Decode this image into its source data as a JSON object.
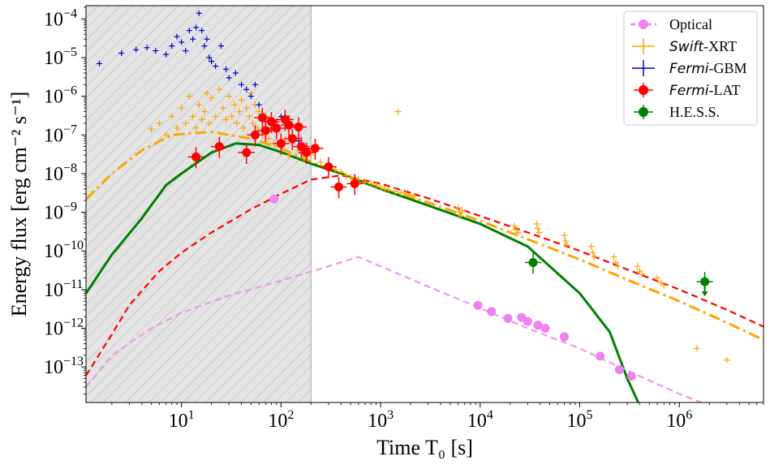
{
  "chart_data": {
    "type": "scatter",
    "xlabel": "Time T₀ [s]",
    "ylabel": "Energy flux [erg cm⁻² s⁻¹]",
    "xscale": "log",
    "yscale": "log",
    "xlim": [
      1.1,
      7000000
    ],
    "ylim": [
      1.2e-14,
      0.00022
    ],
    "x_ticks": [
      {
        "value": 10,
        "base": "10",
        "exp": "1"
      },
      {
        "value": 100,
        "base": "10",
        "exp": "2"
      },
      {
        "value": 1000,
        "base": "10",
        "exp": "3"
      },
      {
        "value": 10000,
        "base": "10",
        "exp": "4"
      },
      {
        "value": 100000,
        "base": "10",
        "exp": "5"
      },
      {
        "value": 1000000,
        "base": "10",
        "exp": "6"
      }
    ],
    "y_ticks": [
      {
        "value": 1e-13,
        "base": "10",
        "exp": "−13"
      },
      {
        "value": 1e-12,
        "base": "10",
        "exp": "−12"
      },
      {
        "value": 1e-11,
        "base": "10",
        "exp": "−11"
      },
      {
        "value": 1e-10,
        "base": "10",
        "exp": "−10"
      },
      {
        "value": 1e-09,
        "base": "10",
        "exp": "−9"
      },
      {
        "value": 1e-08,
        "base": "10",
        "exp": "−8"
      },
      {
        "value": 1e-07,
        "base": "10",
        "exp": "−7"
      },
      {
        "value": 1e-06,
        "base": "10",
        "exp": "−6"
      },
      {
        "value": 1e-05,
        "base": "10",
        "exp": "−5"
      },
      {
        "value": 0.0001,
        "base": "10",
        "exp": "−4"
      }
    ],
    "shaded_region": {
      "x": [
        1.1,
        200
      ],
      "style": "hatched-gray"
    },
    "legend": {
      "position": "top-right",
      "entries": [
        {
          "label": "Optical",
          "italic_prefix": "",
          "color": "#ee82ee",
          "marker": "circle"
        },
        {
          "label": "-XRT",
          "italic_prefix": "Swift",
          "color": "#ffa500",
          "marker": "plus"
        },
        {
          "label": "-GBM",
          "italic_prefix": "Fermi",
          "color": "#0000cd",
          "marker": "plus"
        },
        {
          "label": "-LAT",
          "italic_prefix": "Fermi",
          "color": "#ff0000",
          "marker": "circle-errorbar"
        },
        {
          "label": "H.E.S.S.",
          "italic_prefix": "",
          "color": "#008000",
          "marker": "circle-errorbar"
        }
      ]
    },
    "model_curves": [
      {
        "style": "dash-dot",
        "color": "#ffa500",
        "points": [
          [
            1.1,
            2.2e-09
          ],
          [
            2,
            1e-08
          ],
          [
            4,
            4e-08
          ],
          [
            8,
            1e-07
          ],
          [
            20,
            1.2e-07
          ],
          [
            50,
            8e-08
          ],
          [
            100,
            4.5e-08
          ],
          [
            200,
            2e-08
          ],
          [
            500,
            8e-09
          ],
          [
            1000,
            4e-09
          ],
          [
            3000,
            1.8e-09
          ],
          [
            10000,
            6e-10
          ],
          [
            30000,
            2e-10
          ],
          [
            100000,
            6e-11
          ],
          [
            300000,
            1.8e-11
          ],
          [
            1000000,
            5e-12
          ],
          [
            3000000,
            1.4e-12
          ],
          [
            7000000,
            5e-13
          ]
        ]
      },
      {
        "style": "solid",
        "color": "#008000",
        "points": [
          [
            1.1,
            8e-12
          ],
          [
            2,
            8e-11
          ],
          [
            4,
            7e-10
          ],
          [
            7,
            5e-09
          ],
          [
            10,
            1e-08
          ],
          [
            20,
            3.5e-08
          ],
          [
            35,
            6e-08
          ],
          [
            60,
            5.5e-08
          ],
          [
            100,
            3.6e-08
          ],
          [
            200,
            1.8e-08
          ],
          [
            400,
            1e-08
          ],
          [
            1000,
            4e-09
          ],
          [
            3000,
            1.5e-09
          ],
          [
            10000,
            5e-10
          ],
          [
            30000,
            1.3e-10
          ],
          [
            100000,
            8e-12
          ],
          [
            200000,
            8e-13
          ],
          [
            300000,
            5e-14
          ],
          [
            400000,
            1e-14
          ]
        ]
      },
      {
        "style": "dashed",
        "color": "#ff0000",
        "points": [
          [
            1.1,
            6e-14
          ],
          [
            2,
            7e-13
          ],
          [
            3,
            4e-12
          ],
          [
            6,
            3e-11
          ],
          [
            10,
            9e-11
          ],
          [
            20,
            3e-10
          ],
          [
            50,
            1.2e-09
          ],
          [
            100,
            3e-09
          ],
          [
            200,
            7e-09
          ],
          [
            400,
            9e-09
          ],
          [
            1000,
            5.5e-09
          ],
          [
            3000,
            2.3e-09
          ],
          [
            10000,
            8e-10
          ],
          [
            30000,
            3e-10
          ],
          [
            100000,
            1e-10
          ],
          [
            300000,
            3.3e-11
          ],
          [
            1000000,
            1e-11
          ],
          [
            3000000,
            3e-12
          ],
          [
            7000000,
            1.1e-12
          ]
        ]
      },
      {
        "style": "dashed",
        "color": "#ee99ee",
        "points": [
          [
            1.1,
            3e-14
          ],
          [
            2,
            2e-13
          ],
          [
            5,
            1e-12
          ],
          [
            10,
            2.5e-12
          ],
          [
            30,
            7e-12
          ],
          [
            100,
            1.7e-11
          ],
          [
            300,
            4e-11
          ],
          [
            600,
            7e-11
          ],
          [
            1000,
            4e-11
          ],
          [
            3000,
            1.2e-11
          ],
          [
            10000,
            3.3e-12
          ],
          [
            30000,
            1e-12
          ],
          [
            100000,
            3e-13
          ],
          [
            300000,
            8e-14
          ],
          [
            1000000,
            2e-14
          ],
          [
            2000000,
            1e-14
          ]
        ]
      }
    ],
    "series": [
      {
        "name": "Optical",
        "color": "#ee82ee",
        "marker": "circle",
        "points": [
          [
            85,
            2.2e-09
          ],
          [
            9500,
            3.9e-12
          ],
          [
            13000,
            2.7e-12
          ],
          [
            19000,
            1.8e-12
          ],
          [
            26000,
            1.9e-12
          ],
          [
            30000,
            1.5e-12
          ],
          [
            38000,
            1.2e-12
          ],
          [
            45000,
            1e-12
          ],
          [
            70000,
            6e-13
          ],
          [
            160000,
            1.9e-13
          ],
          [
            250000,
            8.5e-14
          ],
          [
            330000,
            5.8e-14
          ]
        ]
      },
      {
        "name": "Swift-XRT",
        "color": "#ffa500",
        "marker": "plus",
        "points": [
          [
            5,
            1.4e-07
          ],
          [
            6,
            2e-07
          ],
          [
            7,
            1e-07
          ],
          [
            8,
            3e-07
          ],
          [
            9,
            1.5e-07
          ],
          [
            10,
            5e-07
          ],
          [
            11,
            2e-07
          ],
          [
            12,
            1e-06
          ],
          [
            13,
            3e-07
          ],
          [
            14,
            1.5e-07
          ],
          [
            15,
            6e-07
          ],
          [
            16,
            2.5e-07
          ],
          [
            17,
            4e-07
          ],
          [
            18,
            1.2e-06
          ],
          [
            19,
            2e-07
          ],
          [
            20,
            9e-07
          ],
          [
            22,
            3e-07
          ],
          [
            24,
            1.5e-06
          ],
          [
            26,
            5e-07
          ],
          [
            28,
            2.5e-07
          ],
          [
            30,
            1e-06
          ],
          [
            32,
            3e-07
          ],
          [
            34,
            6e-07
          ],
          [
            36,
            2e-07
          ],
          [
            38,
            4e-07
          ],
          [
            40,
            8e-07
          ],
          [
            42,
            1.5e-07
          ],
          [
            45,
            5e-07
          ],
          [
            48,
            3e-07
          ],
          [
            50,
            1.2e-06
          ],
          [
            52,
            2e-07
          ],
          [
            55,
            6e-07
          ],
          [
            58,
            1.5e-07
          ],
          [
            60,
            4e-07
          ],
          [
            65,
            1e-07
          ],
          [
            70,
            3e-07
          ],
          [
            75,
            8e-08
          ],
          [
            80,
            2e-07
          ],
          [
            85,
            6e-08
          ],
          [
            90,
            1.2e-07
          ],
          [
            100,
            5e-08
          ],
          [
            110,
            8e-08
          ],
          [
            120,
            3e-08
          ],
          [
            130,
            6e-08
          ],
          [
            150,
            4e-08
          ],
          [
            170,
            2.5e-08
          ],
          [
            200,
            3e-08
          ],
          [
            250,
            2e-08
          ],
          [
            300,
            1.5e-08
          ],
          [
            350,
            1.3e-08
          ],
          [
            400,
            1.1e-08
          ],
          [
            450,
            9e-09
          ],
          [
            500,
            8e-09
          ],
          [
            550,
            7.5e-09
          ],
          [
            600,
            7e-09
          ],
          [
            700,
            6e-09
          ],
          [
            800,
            5.5e-09
          ],
          [
            900,
            5e-09
          ],
          [
            1000,
            4.5e-09
          ],
          [
            1100,
            4e-09
          ],
          [
            1200,
            3.8e-09
          ],
          [
            1400,
            3.5e-09
          ],
          [
            1600,
            3.2e-09
          ],
          [
            1800,
            3e-09
          ],
          [
            2000,
            2.8e-09
          ],
          [
            2200,
            2.6e-09
          ],
          [
            1500,
            4e-07
          ],
          [
            6000,
            1.3e-09
          ],
          [
            6200,
            1e-09
          ],
          [
            6400,
            8e-10
          ],
          [
            6600,
            1.1e-09
          ],
          [
            22000,
            4.5e-10
          ],
          [
            23000,
            3.5e-10
          ],
          [
            24000,
            3e-10
          ],
          [
            37000,
            5e-10
          ],
          [
            38000,
            3.8e-10
          ],
          [
            39000,
            3e-10
          ],
          [
            70000,
            2.5e-10
          ],
          [
            72000,
            1.8e-10
          ],
          [
            74000,
            1.4e-10
          ],
          [
            130000,
            1.3e-10
          ],
          [
            135000,
            9e-11
          ],
          [
            140000,
            7e-11
          ],
          [
            220000,
            7e-11
          ],
          [
            230000,
            5e-11
          ],
          [
            240000,
            4e-11
          ],
          [
            380000,
            4e-11
          ],
          [
            400000,
            3e-11
          ],
          [
            420000,
            2.5e-11
          ],
          [
            600000,
            2e-11
          ],
          [
            650000,
            1.5e-11
          ],
          [
            700000,
            1.3e-11
          ],
          [
            1500000,
            3e-13
          ],
          [
            3000000,
            1.5e-13
          ]
        ]
      },
      {
        "name": "Fermi-GBM",
        "color": "#0000cd",
        "marker": "plus",
        "points": [
          [
            1.5,
            7e-06
          ],
          [
            2.5,
            1.3e-05
          ],
          [
            3.5,
            1.6e-05
          ],
          [
            4.5,
            1.8e-05
          ],
          [
            5.5,
            1.5e-05
          ],
          [
            7,
            1.2e-05
          ],
          [
            8,
            2e-05
          ],
          [
            9,
            3.5e-05
          ],
          [
            10,
            2.5e-05
          ],
          [
            11,
            1.5e-05
          ],
          [
            12,
            5e-05
          ],
          [
            13,
            3e-05
          ],
          [
            14,
            6e-05
          ],
          [
            15,
            0.00014
          ],
          [
            16,
            5e-05
          ],
          [
            17,
            2e-05
          ],
          [
            18,
            3e-05
          ],
          [
            19,
            1e-05
          ],
          [
            20,
            8e-06
          ],
          [
            22,
            6e-06
          ],
          [
            25,
            2e-05
          ],
          [
            28,
            5e-06
          ],
          [
            30,
            3e-06
          ],
          [
            35,
            4e-06
          ],
          [
            40,
            2e-06
          ],
          [
            45,
            1.5e-06
          ],
          [
            50,
            1e-06
          ],
          [
            55,
            2e-06
          ],
          [
            60,
            6e-07
          ],
          [
            100,
            3e-07
          ],
          [
            150,
            7e-08
          ]
        ]
      },
      {
        "name": "Fermi-LAT",
        "color": "#ff0000",
        "marker": "circle-errorbar",
        "points": [
          [
            14,
            2.7e-08
          ],
          [
            24,
            5e-08
          ],
          [
            45,
            3.5e-08
          ],
          [
            55,
            1e-07
          ],
          [
            65,
            2.8e-07
          ],
          [
            70,
            1.3e-07
          ],
          [
            80,
            2.2e-07
          ],
          [
            90,
            1.5e-07
          ],
          [
            100,
            6e-08
          ],
          [
            110,
            2.5e-07
          ],
          [
            120,
            1.8e-07
          ],
          [
            130,
            8e-08
          ],
          [
            150,
            1.6e-07
          ],
          [
            160,
            5e-08
          ],
          [
            180,
            3.5e-08
          ],
          [
            220,
            4.5e-08
          ],
          [
            300,
            1.5e-08
          ],
          [
            380,
            4.5e-09
          ],
          [
            550,
            5.5e-09
          ]
        ]
      },
      {
        "name": "H.E.S.S.",
        "color": "#008000",
        "marker": "circle-errorbar",
        "points": [
          [
            34000,
            5e-11
          ],
          [
            1800000,
            1.6e-11
          ]
        ]
      }
    ]
  }
}
